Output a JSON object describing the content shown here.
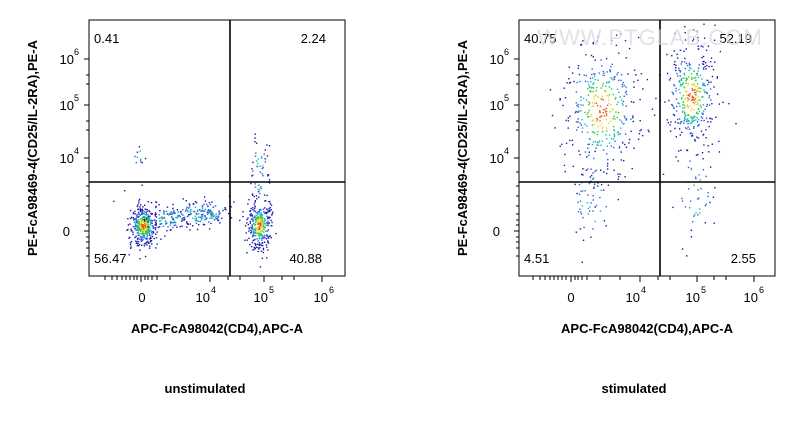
{
  "watermark": "WWW.PTGLAB.COM",
  "chart_data": [
    {
      "type": "scatter",
      "title": "unstimulated",
      "xlabel": "APC-FcA98042(CD4),APC-A",
      "ylabel": "PE-FcA98469-4(CD25/IL-2RA),PE-A",
      "xscale": "biexponential",
      "yscale": "biexponential",
      "x_ticks": [
        {
          "value": "0"
        },
        {
          "value": "10",
          "exp": "4"
        },
        {
          "value": "10",
          "exp": "5"
        },
        {
          "value": "10",
          "exp": "6"
        }
      ],
      "y_ticks": [
        {
          "value": "0"
        },
        {
          "value": "10",
          "exp": "4"
        },
        {
          "value": "10",
          "exp": "5"
        },
        {
          "value": "10",
          "exp": "6"
        }
      ],
      "quadrant_percentages": {
        "upper_left": "0.41",
        "upper_right": "2.24",
        "lower_left": "56.47",
        "lower_right": "40.88"
      },
      "grid": false,
      "density_colors": [
        "#1a1aa8",
        "#2f5fe0",
        "#1fb3b3",
        "#33cc33",
        "#e8d62a",
        "#e05a1a"
      ]
    },
    {
      "type": "scatter",
      "title": "stimulated",
      "xlabel": "APC-FcA98042(CD4),APC-A",
      "ylabel": "PE-FcA98469-4(CD25/IL-2RA),PE-A",
      "xscale": "biexponential",
      "yscale": "biexponential",
      "x_ticks": [
        {
          "value": "0"
        },
        {
          "value": "10",
          "exp": "4"
        },
        {
          "value": "10",
          "exp": "5"
        },
        {
          "value": "10",
          "exp": "6"
        }
      ],
      "y_ticks": [
        {
          "value": "0"
        },
        {
          "value": "10",
          "exp": "4"
        },
        {
          "value": "10",
          "exp": "5"
        },
        {
          "value": "10",
          "exp": "6"
        }
      ],
      "quadrant_percentages": {
        "upper_left": "40.75",
        "upper_right": "52.19",
        "lower_left": "4.51",
        "lower_right": "2.55"
      },
      "grid": false,
      "density_colors": [
        "#1a1aa8",
        "#2f5fe0",
        "#1fb3b3",
        "#33cc33",
        "#e8d62a",
        "#e05a1a"
      ]
    }
  ]
}
